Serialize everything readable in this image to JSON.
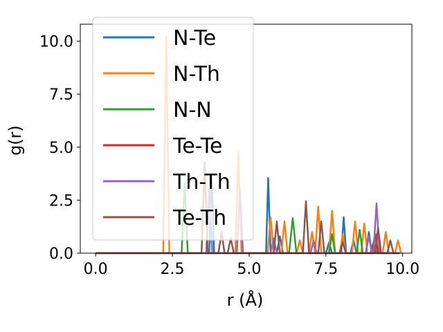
{
  "chart_data": {
    "type": "line",
    "xlabel": "r (Å)",
    "ylabel": "g(r)",
    "xlim": [
      -0.5,
      10.3
    ],
    "ylim": [
      0,
      10.8
    ],
    "xticks": [
      0.0,
      2.5,
      5.0,
      7.5,
      10.0
    ],
    "xtick_labels": [
      "0.0",
      "2.5",
      "5.0",
      "7.5",
      "10.0"
    ],
    "yticks": [
      0.0,
      2.5,
      5.0,
      7.5,
      10.0
    ],
    "ytick_labels": [
      "0.0",
      "2.5",
      "5.0",
      "7.5",
      "10.0"
    ],
    "legend_position": "upper-left",
    "grid": false,
    "series": [
      {
        "name": "N-Te",
        "color": "#1f77b4",
        "x": [
          0.0,
          3.7,
          3.78,
          3.86,
          5.55,
          5.62,
          5.7,
          5.9,
          6.0,
          6.1,
          7.5,
          7.6,
          7.7,
          8.0,
          8.08,
          8.16,
          8.3,
          8.4,
          8.5,
          8.8,
          8.9,
          9.0,
          9.9
        ],
        "y": [
          0.0,
          0.0,
          3.7,
          0.0,
          0.0,
          3.55,
          0.0,
          0.0,
          0.8,
          0.0,
          0.0,
          0.5,
          0.0,
          0.0,
          1.7,
          0.0,
          0.0,
          0.6,
          0.0,
          0.0,
          1.0,
          0.0,
          0.0
        ]
      },
      {
        "name": "N-Th",
        "color": "#ff7f0e",
        "x": [
          0.0,
          2.2,
          2.3,
          2.4,
          4.55,
          4.65,
          4.75,
          5.6,
          5.7,
          5.8,
          6.05,
          6.15,
          6.25,
          6.55,
          6.65,
          6.75,
          6.95,
          7.05,
          7.15,
          7.15,
          7.25,
          7.35,
          7.6,
          7.7,
          7.8,
          7.95,
          8.05,
          8.15,
          8.35,
          8.45,
          8.55,
          8.65,
          8.75,
          8.85,
          9.05,
          9.15,
          9.25,
          9.35,
          9.45,
          9.55,
          9.75,
          9.85,
          9.95
        ],
        "y": [
          0.0,
          0.0,
          10.2,
          0.0,
          0.0,
          4.8,
          0.0,
          0.0,
          1.7,
          0.0,
          0.0,
          1.5,
          0.0,
          0.0,
          0.6,
          0.0,
          0.0,
          1.0,
          0.0,
          0.0,
          2.2,
          0.0,
          0.0,
          2.0,
          0.0,
          0.0,
          0.9,
          0.0,
          0.0,
          1.5,
          0.0,
          0.0,
          1.4,
          0.0,
          0.0,
          0.9,
          0.0,
          0.0,
          1.0,
          0.0,
          0.0,
          0.6,
          0.0
        ]
      },
      {
        "name": "N-N",
        "color": "#2ca02c",
        "x": [
          0.0,
          2.8,
          2.9,
          3.0,
          6.3,
          6.42,
          6.54,
          7.6,
          7.7,
          7.8,
          8.5,
          8.6,
          8.7,
          8.95,
          9.05,
          9.15,
          9.9
        ],
        "y": [
          0.0,
          0.0,
          3.3,
          0.0,
          0.0,
          1.65,
          0.0,
          0.0,
          0.9,
          0.0,
          0.0,
          1.1,
          0.0,
          0.0,
          0.5,
          0.0,
          0.0
        ]
      },
      {
        "name": "Te-Te",
        "color": "#d62728",
        "x": [
          0.0,
          9.0,
          9.1,
          9.2,
          9.9
        ],
        "y": [
          0.0,
          0.0,
          0.9,
          0.0,
          0.0
        ]
      },
      {
        "name": "Th-Th",
        "color": "#9467bd",
        "x": [
          0.0,
          3.6,
          3.7,
          3.8,
          4.6,
          4.7,
          4.8,
          5.7,
          5.8,
          5.9,
          7.0,
          7.1,
          7.2,
          8.8,
          8.9,
          9.0,
          9.05,
          9.15,
          9.25,
          9.9
        ],
        "y": [
          0.0,
          0.0,
          3.0,
          0.0,
          0.0,
          3.0,
          0.0,
          0.0,
          0.7,
          0.0,
          0.0,
          0.6,
          0.0,
          0.0,
          0.8,
          0.0,
          0.0,
          2.35,
          0.0,
          0.0
        ]
      },
      {
        "name": "Te-Th",
        "color": "#8c564b",
        "x": [
          0.0,
          3.45,
          3.55,
          3.65,
          4.0,
          4.1,
          4.2,
          4.3,
          4.4,
          4.5,
          5.8,
          5.9,
          6.0,
          6.75,
          6.85,
          6.95,
          7.25,
          7.35,
          7.45,
          7.95,
          8.05,
          8.15,
          9.1,
          9.2,
          9.3,
          9.5,
          9.6,
          9.7,
          9.9
        ],
        "y": [
          0.0,
          0.0,
          4.3,
          0.0,
          0.0,
          1.0,
          0.0,
          0.0,
          0.7,
          0.0,
          0.0,
          1.5,
          0.0,
          0.0,
          2.45,
          0.0,
          0.0,
          1.5,
          0.0,
          0.0,
          0.5,
          0.0,
          0.0,
          1.2,
          0.0,
          0.0,
          0.6,
          0.0,
          0.0
        ]
      }
    ]
  }
}
